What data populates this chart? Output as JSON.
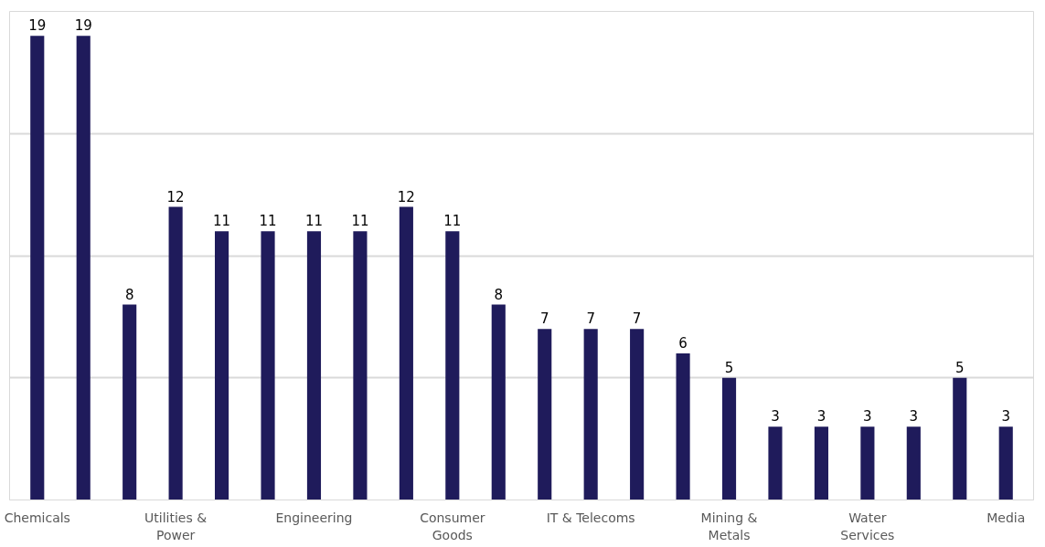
{
  "chart_data": {
    "type": "bar",
    "categories": [
      "Chemicals",
      null,
      null,
      "Utilities & Power",
      null,
      null,
      "Engineering",
      null,
      null,
      "Consumer Goods",
      null,
      null,
      "IT & Telecoms",
      null,
      null,
      "Mining & Metals",
      null,
      null,
      "Water Services",
      null,
      null,
      "Media"
    ],
    "values": [
      19,
      19,
      8,
      12,
      11,
      11,
      11,
      11,
      12,
      11,
      8,
      7,
      7,
      7,
      6,
      5,
      3,
      3,
      3,
      3,
      5,
      3
    ],
    "color": "#1f1b5b",
    "ylim": [
      0,
      20
    ],
    "yticks": [
      {
        "value": 0,
        "label": null
      },
      {
        "value": 5,
        "label": null
      },
      {
        "value": 10,
        "label": null
      },
      {
        "value": 15,
        "label": null
      },
      {
        "value": 20,
        "label": null
      }
    ],
    "grid": "y",
    "tick_labels": "x",
    "data_labels": true
  }
}
